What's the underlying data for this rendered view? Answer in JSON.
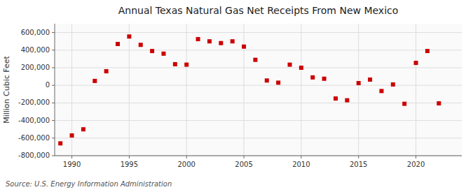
{
  "chart_data": {
    "type": "scatter",
    "title": "Annual Texas Natural Gas Net Receipts From New Mexico",
    "ylabel": "Million Cubic Feet",
    "annotations": [
      "Source: U.S. Energy Information Administration"
    ],
    "x": [
      1989,
      1990,
      1991,
      1992,
      1993,
      1994,
      1995,
      1996,
      1997,
      1998,
      1999,
      2000,
      2001,
      2002,
      2003,
      2004,
      2005,
      2006,
      2007,
      2008,
      2009,
      2010,
      2011,
      2012,
      2013,
      2014,
      2015,
      2016,
      2017,
      2018,
      2019,
      2020,
      2021,
      2022
    ],
    "values": [
      -660000,
      -570000,
      -500000,
      50000,
      160000,
      470000,
      555000,
      460000,
      390000,
      360000,
      240000,
      235000,
      525000,
      500000,
      480000,
      500000,
      440000,
      290000,
      55000,
      30000,
      235000,
      200000,
      90000,
      75000,
      -150000,
      -170000,
      25000,
      65000,
      -65000,
      10000,
      -210000,
      255000,
      390000,
      -205000
    ],
    "color": "#cc0000",
    "marker": "square",
    "xlim": [
      1988.5,
      2024
    ],
    "xticks": [
      1990,
      1995,
      2000,
      2005,
      2010,
      2015,
      2020
    ],
    "ylim": [
      -800000,
      700000
    ],
    "yticks": [
      {
        "value": -800000,
        "label": "-800,000"
      },
      {
        "value": -600000,
        "label": "-600,000"
      },
      {
        "value": -400000,
        "label": "-400,000"
      },
      {
        "value": -200000,
        "label": "-200,000"
      },
      0,
      {
        "value": 200000,
        "label": "200,000"
      },
      {
        "value": 400000,
        "label": "400,000"
      },
      {
        "value": 600000,
        "label": "600,000"
      }
    ],
    "grid": true
  }
}
